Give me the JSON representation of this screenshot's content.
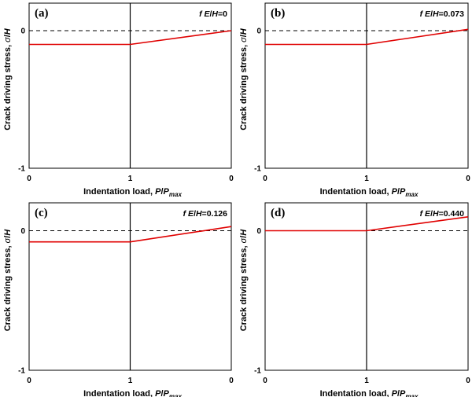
{
  "chart_data": [
    {
      "type": "line",
      "panel_label": "(a)",
      "param_label": "f E/H=0",
      "param_label_parts": [
        "f ",
        "E",
        "/",
        "H",
        "=0"
      ],
      "xlabel_parts": [
        "Indentation load, ",
        "P",
        "/",
        "P",
        "max"
      ],
      "ylabel_parts": [
        "Crack driving stress, ",
        "σ",
        "/",
        "H"
      ],
      "x_tick_labels": [
        "0",
        "1",
        "0"
      ],
      "y_tick_labels": [
        "0",
        "-1"
      ],
      "ylim": [
        -1,
        0.2
      ],
      "x_domain": [
        0,
        2
      ],
      "reference_line_y": 0,
      "series": [
        {
          "name": "crack driving stress",
          "color": "#e00000",
          "x": [
            0,
            1,
            2
          ],
          "y": [
            -0.1,
            -0.1,
            0.0
          ]
        }
      ]
    },
    {
      "type": "line",
      "panel_label": "(b)",
      "param_label": "f E/H=0.073",
      "param_label_parts": [
        "f ",
        "E",
        "/",
        "H",
        "=0.073"
      ],
      "xlabel_parts": [
        "Indentation load, ",
        "P",
        "/",
        "P",
        "max"
      ],
      "ylabel_parts": [
        "Crack driving stress, ",
        "σ",
        "/",
        "H"
      ],
      "x_tick_labels": [
        "0",
        "1",
        "0"
      ],
      "y_tick_labels": [
        "0",
        "-1"
      ],
      "ylim": [
        -1,
        0.2
      ],
      "x_domain": [
        0,
        2
      ],
      "reference_line_y": 0,
      "series": [
        {
          "name": "crack driving stress",
          "color": "#e00000",
          "x": [
            0,
            1,
            2
          ],
          "y": [
            -0.1,
            -0.1,
            0.01
          ]
        }
      ]
    },
    {
      "type": "line",
      "panel_label": "(c)",
      "param_label": "f E/H=0.126",
      "param_label_parts": [
        "f ",
        "E",
        "/",
        "H",
        "=0.126"
      ],
      "xlabel_parts": [
        "Indentation load, ",
        "P",
        "/",
        "P",
        "max"
      ],
      "ylabel_parts": [
        "Crack driving stress, ",
        "σ",
        "/",
        "H"
      ],
      "x_tick_labels": [
        "0",
        "1",
        "0"
      ],
      "y_tick_labels": [
        "0",
        "-1"
      ],
      "ylim": [
        -1,
        0.2
      ],
      "x_domain": [
        0,
        2
      ],
      "reference_line_y": 0,
      "series": [
        {
          "name": "crack driving stress",
          "color": "#e00000",
          "x": [
            0,
            1,
            2
          ],
          "y": [
            -0.08,
            -0.08,
            0.03
          ]
        }
      ]
    },
    {
      "type": "line",
      "panel_label": "(d)",
      "param_label": "f E/H=0.440",
      "param_label_parts": [
        "f ",
        "E",
        "/",
        "H",
        "=0.440"
      ],
      "xlabel_parts": [
        "Indentation load, ",
        "P",
        "/",
        "P",
        "max"
      ],
      "ylabel_parts": [
        "Crack driving stress, ",
        "σ",
        "/",
        "H"
      ],
      "x_tick_labels": [
        "0",
        "1",
        "0"
      ],
      "y_tick_labels": [
        "0",
        "-1"
      ],
      "ylim": [
        -1,
        0.2
      ],
      "x_domain": [
        0,
        2
      ],
      "reference_line_y": 0,
      "series": [
        {
          "name": "crack driving stress",
          "color": "#e00000",
          "x": [
            0,
            1,
            2
          ],
          "y": [
            0.0,
            0.0,
            0.1
          ]
        }
      ]
    }
  ]
}
